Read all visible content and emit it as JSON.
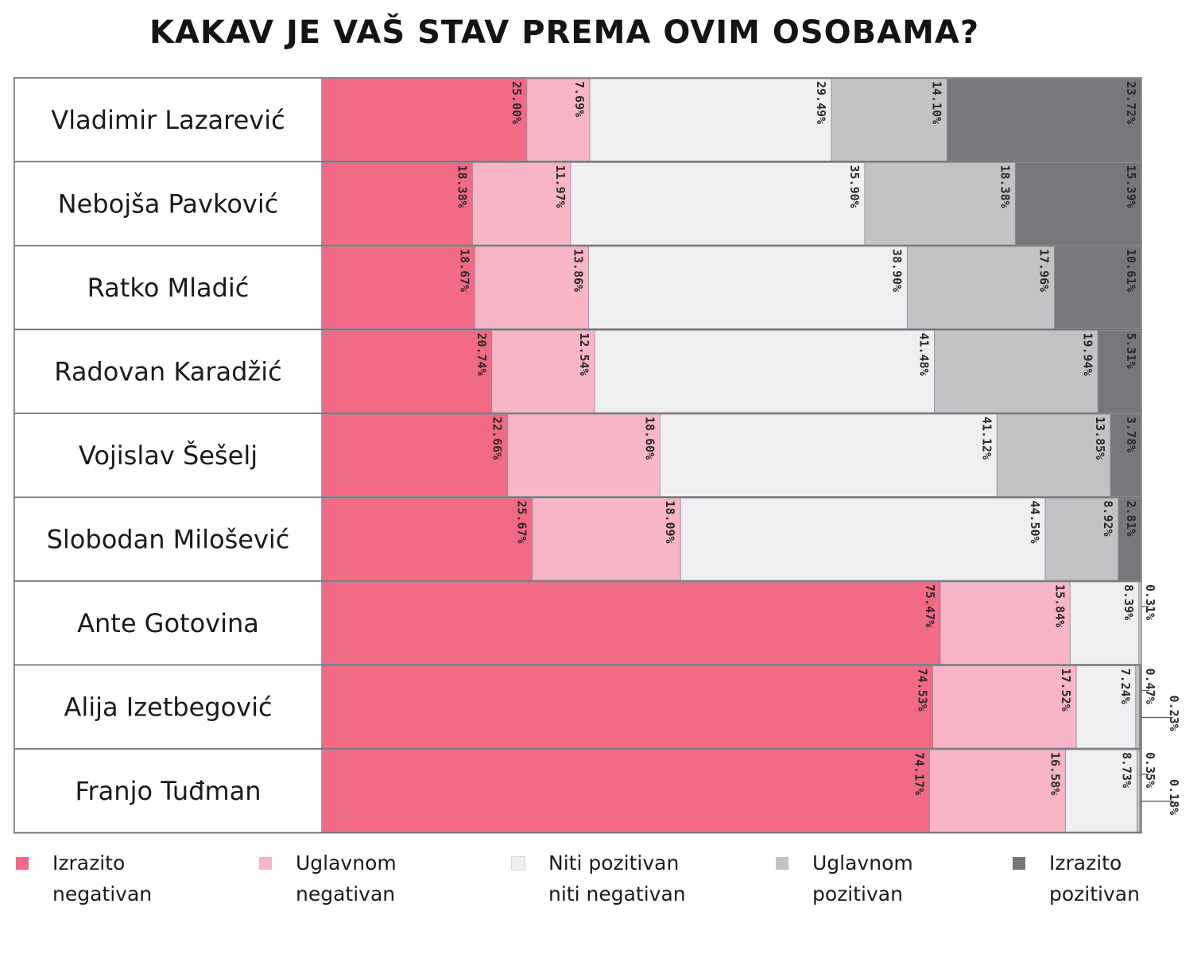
{
  "chart_data": {
    "type": "bar",
    "stacked": true,
    "orientation": "horizontal",
    "normalized": true,
    "title": "KAKAV JE VAŠ STAV PREMA OVIM OSOBAMA?",
    "categories": [
      "Vladimir Lazarević",
      "Nebojša Pavković",
      "Ratko Mladić",
      "Radovan Karadžić",
      "Vojislav Šešelj",
      "Slobodan Milošević",
      "Ante Gotovina",
      "Alija Izetbegović",
      "Franjo Tuđman"
    ],
    "series": [
      {
        "name": "Izrazito negativan",
        "color": "#f26a86",
        "values": [
          25.0,
          18.38,
          18.67,
          20.74,
          22.66,
          25.67,
          75.47,
          74.53,
          74.17
        ],
        "labels": [
          "25.00%",
          "18.38%",
          "18.67%",
          "20.74%",
          "22.66%",
          "25.67%",
          "75.47%",
          "74.53%",
          "74.17%"
        ]
      },
      {
        "name": "Uglavnom negativan",
        "color": "#f7b5c6",
        "values": [
          7.69,
          11.97,
          13.86,
          12.54,
          18.6,
          18.09,
          15.84,
          17.52,
          16.58
        ],
        "labels": [
          "7.69%",
          "11.97%",
          "13.86%",
          "12.54%",
          "18.60%",
          "18.09%",
          "15.84%",
          "17.52%",
          "16.58%"
        ]
      },
      {
        "name": "Niti pozitivan niti negativan",
        "color": "#efeef1",
        "values": [
          29.49,
          35.9,
          38.9,
          41.48,
          41.12,
          44.5,
          8.39,
          7.24,
          8.73
        ],
        "labels": [
          "29.49%",
          "35.90%",
          "38.90%",
          "41.48%",
          "41.12%",
          "44.50%",
          "8.39%",
          "7.24%",
          "8.73%"
        ]
      },
      {
        "name": "Uglavnom pozitivan",
        "color": "#c5c2c6",
        "values": [
          14.1,
          18.38,
          17.96,
          19.94,
          13.85,
          8.92,
          0.31,
          0.47,
          0.35
        ],
        "labels": [
          "14.10%",
          "18.38%",
          "17.96%",
          "19.94%",
          "13.85%",
          "8.92%",
          "0.31%",
          "0.47%",
          "0.35%"
        ]
      },
      {
        "name": "Izrazito pozitivan",
        "color": "#77767b",
        "values": [
          23.72,
          15.39,
          10.61,
          5.31,
          3.78,
          2.81,
          0,
          0.23,
          0.18
        ],
        "labels": [
          "23.72%",
          "15.39%",
          "10.61%",
          "5.31%",
          "3.78%",
          "2.81%",
          "",
          "0.23%",
          "0.18%"
        ]
      }
    ],
    "xlim": [
      0,
      100
    ],
    "grid": false,
    "legend_position": "bottom"
  },
  "legend": [
    {
      "line1": "Izrazito",
      "line2": "negativan",
      "color": "#f26a86"
    },
    {
      "line1": "Uglavnom",
      "line2": "negativan",
      "color": "#f7b5c6"
    },
    {
      "line1": "Niti pozitivan",
      "line2": "niti negativan",
      "color": "#efeef1"
    },
    {
      "line1": "Uglavnom",
      "line2": "pozitivan",
      "color": "#c5c2c6"
    },
    {
      "line1": "Izrazito",
      "line2": "pozitivan",
      "color": "#77767b"
    }
  ]
}
